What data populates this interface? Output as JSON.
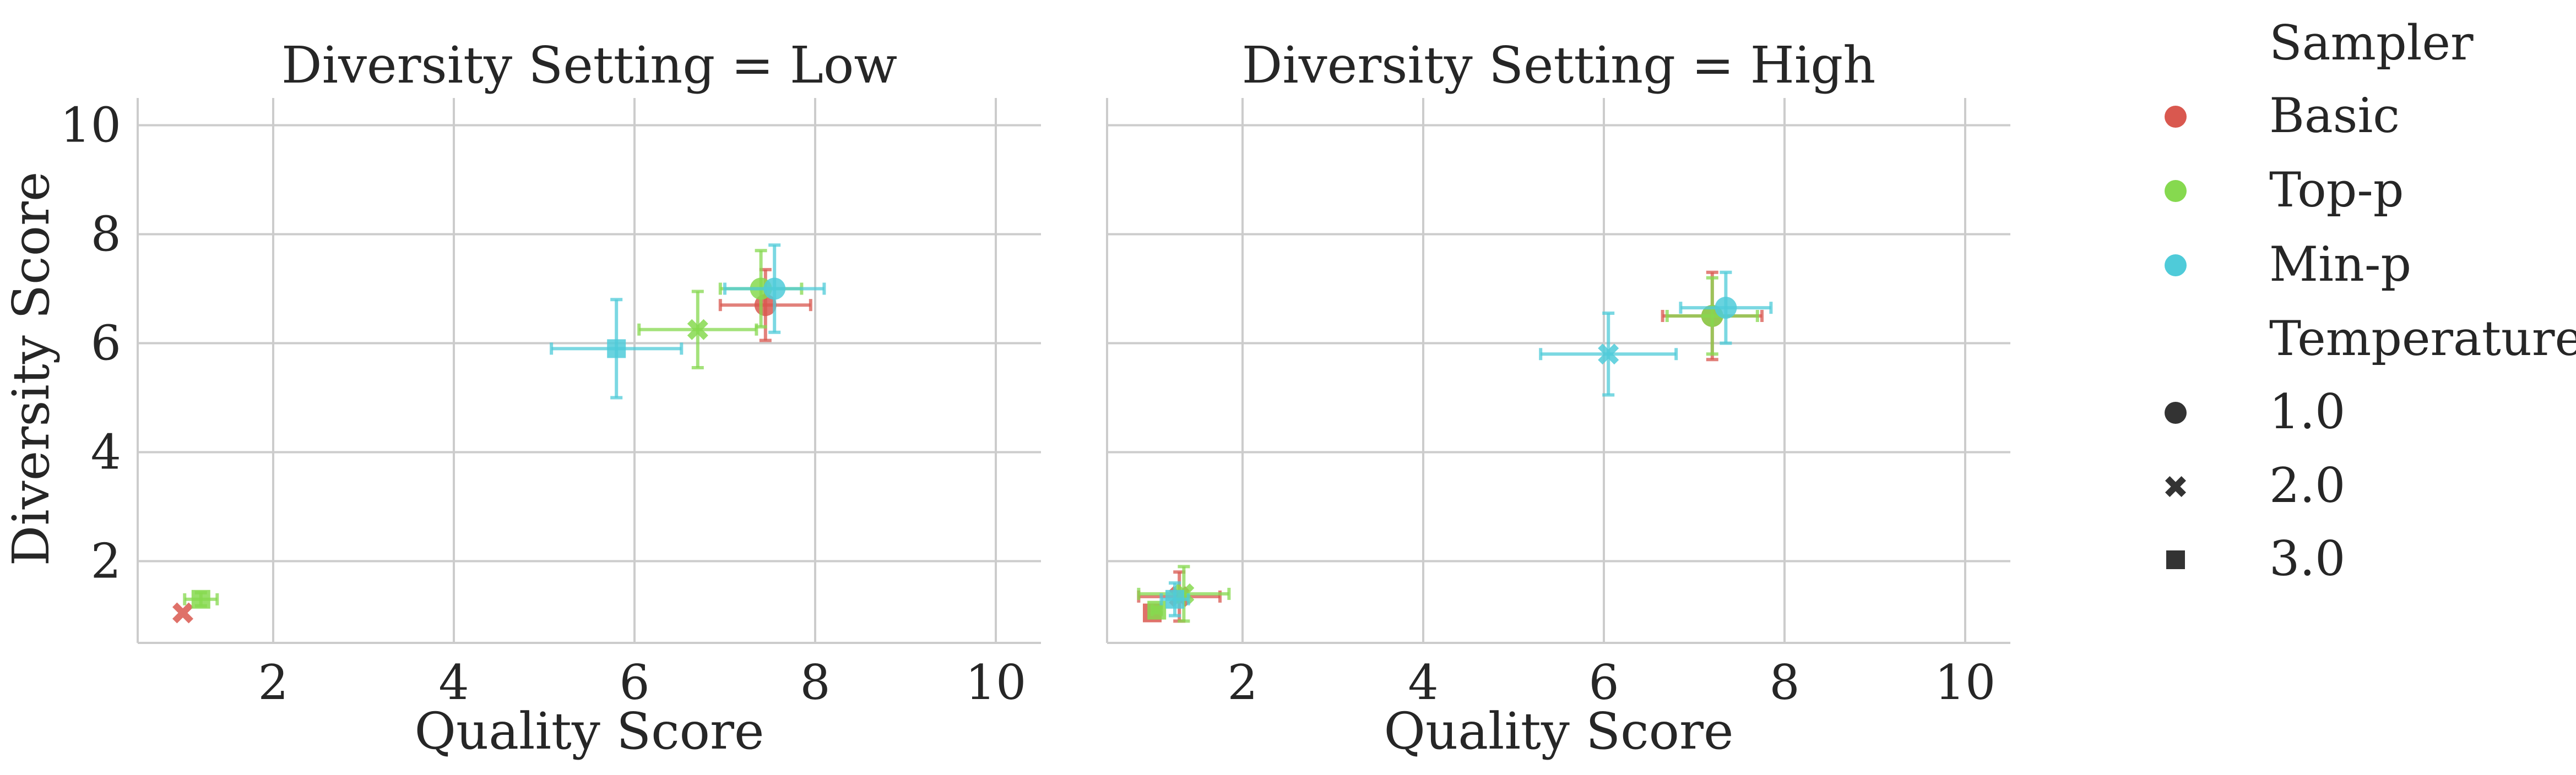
{
  "chart_data": {
    "type": "scatter",
    "facet_label": "Diversity Setting",
    "xlabel": "Quality Score",
    "ylabel": "Diversity Score",
    "xlim": [
      0.5,
      10.5
    ],
    "ylim": [
      0.5,
      10.5
    ],
    "x_ticks": [
      2,
      4,
      6,
      8,
      10
    ],
    "y_ticks": [
      2,
      4,
      6,
      8,
      10
    ],
    "grid": true,
    "legend": {
      "placement": "right",
      "hue_title": "Sampler",
      "style_title": "Temperature",
      "hue_entries": [
        {
          "name": "Basic",
          "color": "#d9584f"
        },
        {
          "name": "Top-p",
          "color": "#86d94f"
        },
        {
          "name": "Min-p",
          "color": "#4fcbd9"
        }
      ],
      "style_entries": [
        {
          "name": "1.0",
          "marker": "circle"
        },
        {
          "name": "2.0",
          "marker": "x"
        },
        {
          "name": "3.0",
          "marker": "square"
        }
      ]
    },
    "panels": [
      {
        "title": "Diversity Setting = Low",
        "points": [
          {
            "sampler": "Basic",
            "temperature": "1.0",
            "x": 7.45,
            "y": 6.7,
            "xerr": 0.5,
            "yerr": 0.65
          },
          {
            "sampler": "Basic",
            "temperature": "2.0",
            "x": 1.0,
            "y": 1.05,
            "xerr": 0,
            "yerr": 0
          },
          {
            "sampler": "Top-p",
            "temperature": "1.0",
            "x": 7.4,
            "y": 7.0,
            "xerr": 0.45,
            "yerr": 0.7
          },
          {
            "sampler": "Top-p",
            "temperature": "2.0",
            "x": 6.7,
            "y": 6.25,
            "xerr": 0.65,
            "yerr": 0.7
          },
          {
            "sampler": "Top-p",
            "temperature": "3.0",
            "x": 1.2,
            "y": 1.3,
            "xerr": 0.18,
            "yerr": 0.12
          },
          {
            "sampler": "Min-p",
            "temperature": "1.0",
            "x": 7.55,
            "y": 7.0,
            "xerr": 0.55,
            "yerr": 0.8
          },
          {
            "sampler": "Min-p",
            "temperature": "3.0",
            "x": 5.8,
            "y": 5.9,
            "xerr": 0.72,
            "yerr": 0.9
          }
        ]
      },
      {
        "title": "Diversity Setting = High",
        "points": [
          {
            "sampler": "Basic",
            "temperature": "1.0",
            "x": 7.2,
            "y": 6.5,
            "xerr": 0.55,
            "yerr": 0.8
          },
          {
            "sampler": "Basic",
            "temperature": "3.0",
            "x": 1.0,
            "y": 1.05,
            "xerr": 0,
            "yerr": 0
          },
          {
            "sampler": "Basic",
            "temperature": "2.0",
            "x": 1.3,
            "y": 1.35,
            "xerr": 0.45,
            "yerr": 0.45
          },
          {
            "sampler": "Top-p",
            "temperature": "1.0",
            "x": 7.2,
            "y": 6.5,
            "xerr": 0.5,
            "yerr": 0.7
          },
          {
            "sampler": "Top-p",
            "temperature": "2.0",
            "x": 1.35,
            "y": 1.4,
            "xerr": 0.5,
            "yerr": 0.5
          },
          {
            "sampler": "Top-p",
            "temperature": "3.0",
            "x": 1.05,
            "y": 1.1,
            "xerr": 0.05,
            "yerr": 0.05
          },
          {
            "sampler": "Min-p",
            "temperature": "1.0",
            "x": 7.35,
            "y": 6.65,
            "xerr": 0.5,
            "yerr": 0.65
          },
          {
            "sampler": "Min-p",
            "temperature": "2.0",
            "x": 6.05,
            "y": 5.8,
            "xerr": 0.75,
            "yerr": 0.75
          },
          {
            "sampler": "Min-p",
            "temperature": "3.0",
            "x": 1.25,
            "y": 1.3,
            "xerr": 0.15,
            "yerr": 0.3
          }
        ]
      }
    ]
  }
}
